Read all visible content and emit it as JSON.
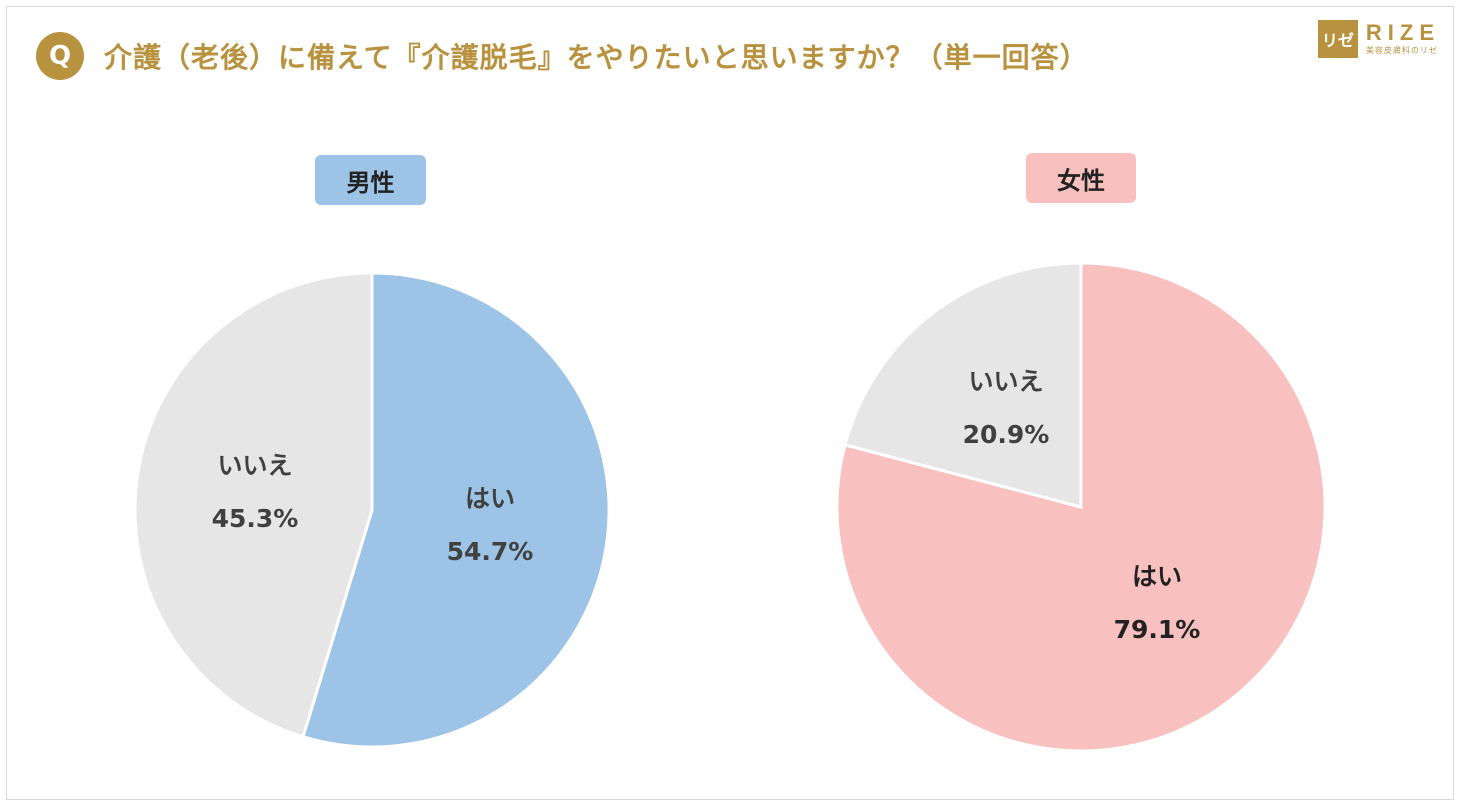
{
  "header": {
    "q_badge": "Q",
    "title": "介護（老後）に備えて『介護脱毛』をやりたいと思いますか？（単一回答）"
  },
  "logo": {
    "mark": "リゼ",
    "name": "RIZE",
    "subtitle": "美容皮膚科のリゼ"
  },
  "colors": {
    "accent_gold": "#B8923F",
    "male_yes": "#9DC3E6",
    "male_label_bg": "#9DC3E6",
    "female_yes": "#F8C0BE",
    "female_label_bg": "#F8C0BE",
    "no": "#E7E6E6"
  },
  "chart_data": [
    {
      "type": "pie",
      "title": "男性",
      "slices": [
        {
          "label": "はい",
          "value": 54.7,
          "value_text": "54.7%"
        },
        {
          "label": "いいえ",
          "value": 45.3,
          "value_text": "45.3%"
        }
      ]
    },
    {
      "type": "pie",
      "title": "女性",
      "slices": [
        {
          "label": "はい",
          "value": 79.1,
          "value_text": "79.1%"
        },
        {
          "label": "いいえ",
          "value": 20.9,
          "value_text": "20.9%"
        }
      ]
    }
  ]
}
